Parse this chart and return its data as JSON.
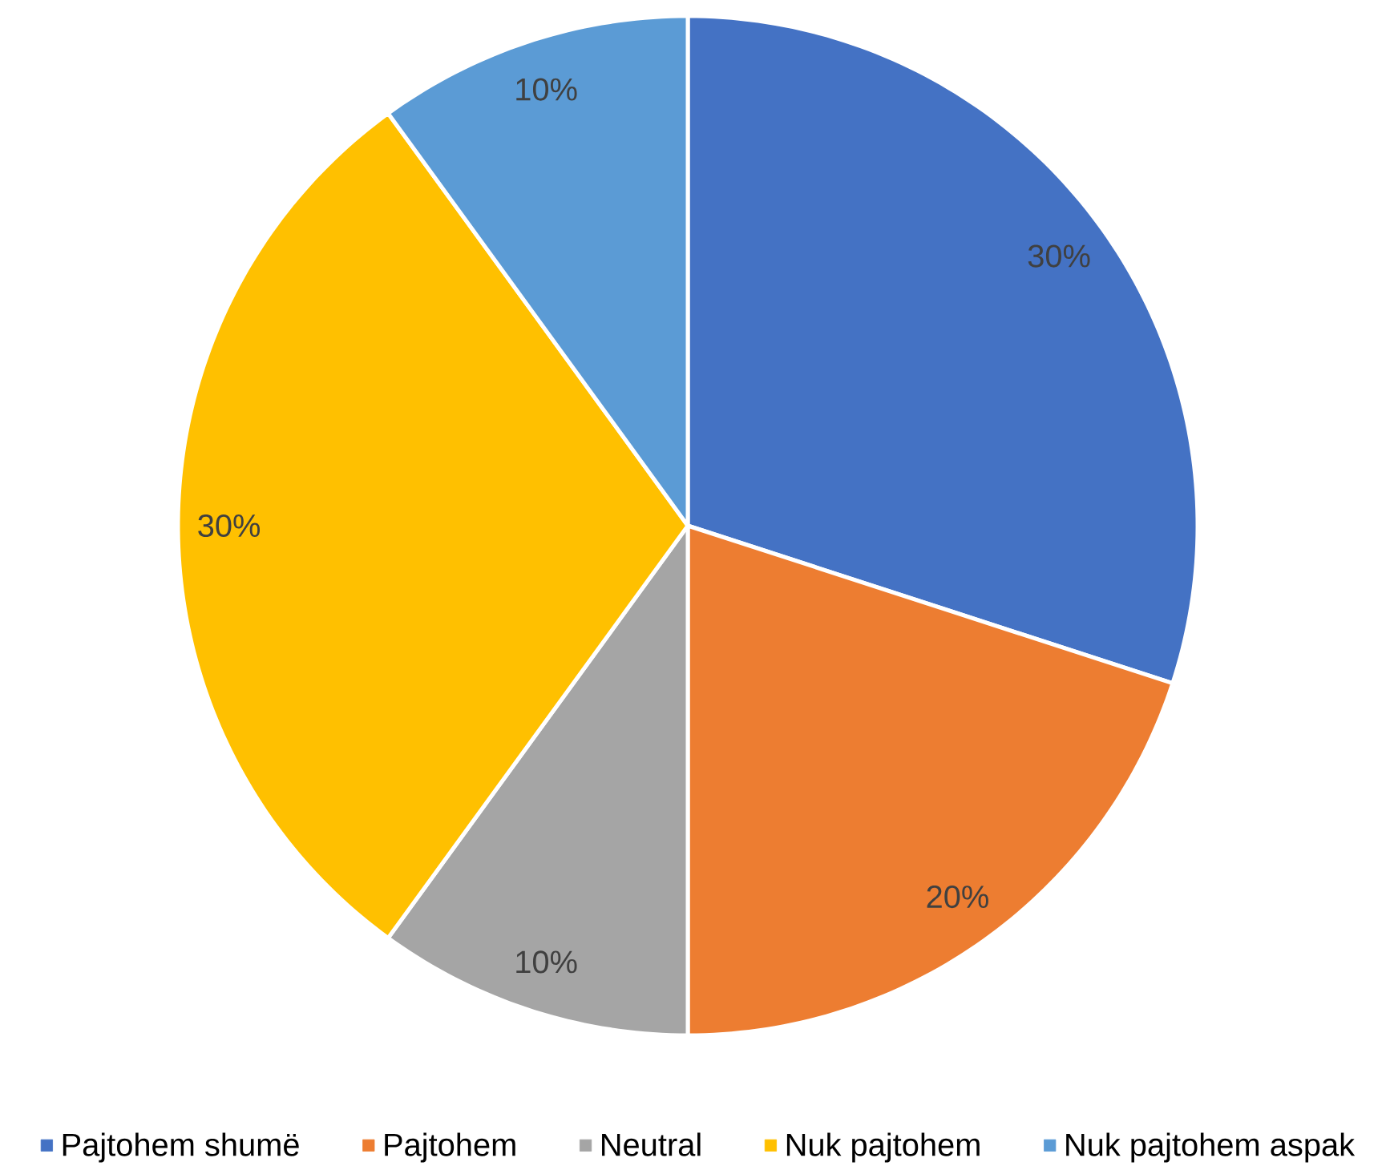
{
  "chart_data": {
    "type": "pie",
    "categories": [
      "Pajtohem shumë",
      "Pajtohem",
      "Neutral",
      "Nuk pajtohem",
      "Nuk pajtohem aspak"
    ],
    "values": [
      30,
      20,
      10,
      30,
      10
    ],
    "colors": [
      "#4472c4",
      "#ed7d31",
      "#a5a5a5",
      "#ffc000",
      "#5b9bd5"
    ],
    "value_labels": [
      "30%",
      "20%",
      "10%",
      "30%",
      "10%"
    ],
    "legend": "bottom"
  }
}
